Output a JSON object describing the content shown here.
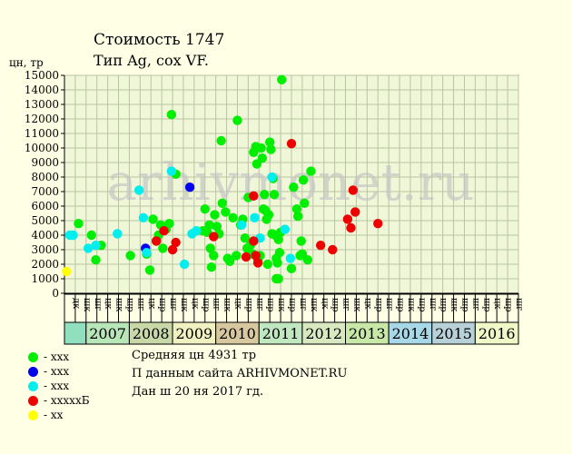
{
  "title": "Стоимость 1747",
  "subtitle": "Тип Ag, сох VF.",
  "chart_data": {
    "type": "scatter",
    "ylabel": "цн, тр",
    "ylim": [
      0,
      15000
    ],
    "yticks": [
      0,
      1000,
      2000,
      3000,
      4000,
      5000,
      6000,
      7000,
      8000,
      9000,
      10000,
      11000,
      12000,
      13000,
      14000,
      15000
    ],
    "watermark": "arhivmonet.ru",
    "quarter_labels": [
      "дк",
      "шк",
      "шг",
      "цк",
      "шк",
      "шр",
      "шг",
      "цк",
      "шр",
      "шг",
      "шк",
      "цк",
      "шр",
      "шг",
      "шк",
      "цк",
      "шр",
      "шг",
      "шр",
      "шк",
      "шр",
      "шг",
      "шк",
      "цк",
      "шр",
      "шг",
      "шк",
      "цк",
      "шр",
      "шг",
      "шр",
      "шк",
      "шр",
      "шг",
      "шр",
      "шк",
      "шр",
      "шг",
      "шр",
      "цк",
      "шр",
      "шг"
    ],
    "years": [
      "2007",
      "2008",
      "2009",
      "2010",
      "2011",
      "2012",
      "2013",
      "2014",
      "2015",
      "2016"
    ],
    "year_colors": [
      "#b8e6b8",
      "#c8d8a8",
      "#f0f0c0",
      "#d8c8a0",
      "#c0e8c0",
      "#d8e8c0",
      "#c8e8a8",
      "#a8d8e8",
      "#b8d0d8",
      "#f0f8c8"
    ],
    "first_cell_color": "#90e0c0",
    "series": [
      {
        "name": "- ххх",
        "color": "#00ee00",
        "points": [
          [
            1.3,
            4800
          ],
          [
            2.5,
            4000
          ],
          [
            2.9,
            2300
          ],
          [
            3.4,
            3300
          ],
          [
            6.1,
            2600
          ],
          [
            7.6,
            2700
          ],
          [
            7.9,
            1600
          ],
          [
            8.2,
            5100
          ],
          [
            8.5,
            3600
          ],
          [
            8.7,
            4000
          ],
          [
            8.9,
            4700
          ],
          [
            9.1,
            3100
          ],
          [
            9.4,
            4400
          ],
          [
            9.7,
            4800
          ],
          [
            9.9,
            12300
          ],
          [
            10.3,
            8200
          ],
          [
            12.8,
            4300
          ],
          [
            13.0,
            5800
          ],
          [
            13.2,
            4200
          ],
          [
            13.4,
            4700
          ],
          [
            13.5,
            3100
          ],
          [
            13.6,
            1800
          ],
          [
            13.8,
            2600
          ],
          [
            13.9,
            5400
          ],
          [
            14.1,
            4600
          ],
          [
            14.3,
            4100
          ],
          [
            14.5,
            10500
          ],
          [
            14.6,
            6200
          ],
          [
            14.9,
            5600
          ],
          [
            15.1,
            2400
          ],
          [
            15.3,
            2200
          ],
          [
            15.6,
            5200
          ],
          [
            15.9,
            2600
          ],
          [
            16.0,
            11900
          ],
          [
            16.3,
            4700
          ],
          [
            16.5,
            5100
          ],
          [
            16.7,
            3800
          ],
          [
            16.9,
            3100
          ],
          [
            17.0,
            6600
          ],
          [
            17.2,
            3300
          ],
          [
            17.4,
            2700
          ],
          [
            17.5,
            9700
          ],
          [
            17.7,
            10100
          ],
          [
            17.8,
            8900
          ],
          [
            17.9,
            2300
          ],
          [
            18.1,
            2600
          ],
          [
            18.2,
            10000
          ],
          [
            18.3,
            9300
          ],
          [
            18.4,
            5800
          ],
          [
            18.5,
            6800
          ],
          [
            18.6,
            5700
          ],
          [
            18.7,
            5100
          ],
          [
            18.8,
            2000
          ],
          [
            18.9,
            5400
          ],
          [
            19.0,
            10400
          ],
          [
            19.1,
            9900
          ],
          [
            19.2,
            4100
          ],
          [
            19.3,
            7900
          ],
          [
            19.4,
            6800
          ],
          [
            19.5,
            4000
          ],
          [
            19.6,
            1000
          ],
          [
            19.7,
            2100
          ],
          [
            19.8,
            3700
          ],
          [
            19.9,
            2800
          ],
          [
            20.0,
            4200
          ],
          [
            20.1,
            14700
          ],
          [
            19.8,
            1000
          ],
          [
            19.6,
            2400
          ],
          [
            21.0,
            1700
          ],
          [
            21.5,
            5800
          ],
          [
            21.6,
            5300
          ],
          [
            21.9,
            3600
          ],
          [
            22.0,
            2700
          ],
          [
            22.2,
            6200
          ],
          [
            22.5,
            2300
          ],
          [
            22.8,
            8400
          ],
          [
            21.8,
            2600
          ],
          [
            22.1,
            7800
          ],
          [
            21.2,
            7300
          ]
        ]
      },
      {
        "name": "- ххх",
        "color": "#0000ee",
        "points": [
          [
            7.5,
            3100
          ],
          [
            11.6,
            7300
          ]
        ]
      },
      {
        "name": "- ххх",
        "color": "#00eeee",
        "points": [
          [
            0.5,
            4000
          ],
          [
            0.8,
            4000
          ],
          [
            2.2,
            3100
          ],
          [
            2.9,
            3300
          ],
          [
            4.9,
            4100
          ],
          [
            6.9,
            7100
          ],
          [
            7.3,
            5200
          ],
          [
            7.6,
            2800
          ],
          [
            9.9,
            8400
          ],
          [
            11.1,
            2000
          ],
          [
            11.8,
            4100
          ],
          [
            12.2,
            4300
          ],
          [
            16.4,
            4700
          ],
          [
            17.6,
            5200
          ],
          [
            18.1,
            3800
          ],
          [
            19.2,
            8000
          ],
          [
            20.4,
            4400
          ],
          [
            20.9,
            2400
          ]
        ]
      },
      {
        "name": "- хххххБ",
        "color": "#ee0000",
        "points": [
          [
            8.5,
            3600
          ],
          [
            9.2,
            4300
          ],
          [
            10.0,
            3000
          ],
          [
            10.3,
            3500
          ],
          [
            13.8,
            3900
          ],
          [
            16.8,
            2500
          ],
          [
            17.5,
            6700
          ],
          [
            17.7,
            2600
          ],
          [
            17.9,
            2100
          ],
          [
            17.5,
            3600
          ],
          [
            21.0,
            10300
          ],
          [
            23.7,
            3300
          ],
          [
            24.8,
            3000
          ],
          [
            26.2,
            5100
          ],
          [
            26.5,
            4500
          ],
          [
            26.7,
            7100
          ],
          [
            26.9,
            5600
          ],
          [
            29.0,
            4800
          ]
        ]
      },
      {
        "name": "- хх",
        "color": "#ffff00",
        "points": [
          [
            0.2,
            1500
          ]
        ]
      }
    ],
    "notes": [
      "Средняя цн 4931 тр",
      "П данным сайта ARHIVMONET.RU",
      "Дан ш 20 ня 2017 гд."
    ]
  }
}
